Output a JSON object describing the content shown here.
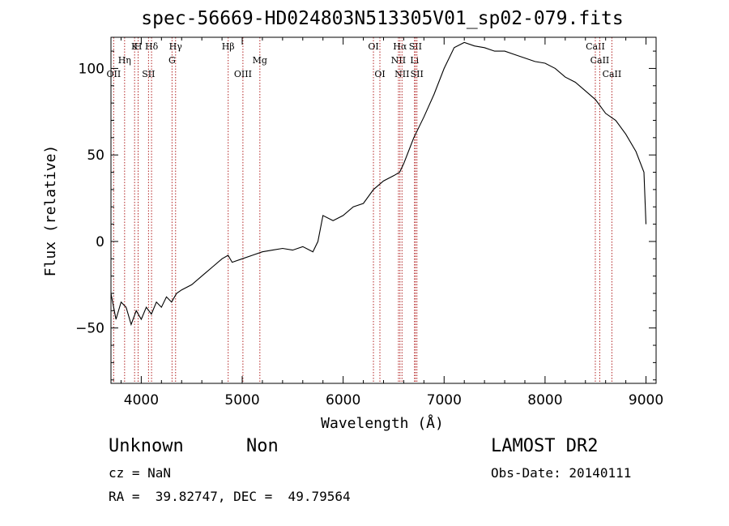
{
  "chart_data": {
    "type": "line",
    "title": "spec-56669-HD024803N513305V01_sp02-079.fits",
    "xlabel": "Wavelength (Å)",
    "ylabel": "Flux (relative)",
    "xlim": [
      3700,
      9100
    ],
    "ylim": [
      -82,
      118
    ],
    "xticks": [
      4000,
      5000,
      6000,
      7000,
      8000,
      9000
    ],
    "yticks": [
      -50,
      0,
      50,
      100
    ],
    "grid": false,
    "line_color": "#000000",
    "marker_color": "#b22222",
    "series": [
      {
        "x": [
          3700,
          3750,
          3800,
          3850,
          3900,
          3950,
          4000,
          4050,
          4100,
          4150,
          4200,
          4250,
          4300,
          4350,
          4400,
          4500,
          4600,
          4700,
          4800,
          4860,
          4900,
          5000,
          5100,
          5200,
          5300,
          5400,
          5500,
          5600,
          5700,
          5750,
          5800,
          5900,
          6000,
          6100,
          6200,
          6300,
          6400,
          6500,
          6560,
          6600,
          6700,
          6800,
          6900,
          7000,
          7100,
          7200,
          7300,
          7400,
          7500,
          7600,
          7700,
          7800,
          7900,
          8000,
          8100,
          8200,
          8300,
          8400,
          8500,
          8600,
          8700,
          8800,
          8900,
          8980,
          9000
        ],
        "y": [
          -30,
          -45,
          -35,
          -38,
          -48,
          -40,
          -45,
          -38,
          -42,
          -35,
          -38,
          -32,
          -35,
          -30,
          -28,
          -25,
          -20,
          -15,
          -10,
          -8,
          -12,
          -10,
          -8,
          -6,
          -5,
          -4,
          -5,
          -3,
          -6,
          0,
          15,
          12,
          15,
          20,
          22,
          30,
          35,
          38,
          40,
          45,
          60,
          72,
          85,
          100,
          112,
          115,
          113,
          112,
          110,
          110,
          108,
          106,
          104,
          103,
          100,
          95,
          92,
          87,
          82,
          74,
          70,
          62,
          52,
          40,
          10
        ]
      }
    ],
    "line_markers": [
      {
        "wl": 3727,
        "label": "OII",
        "row": 3
      },
      {
        "wl": 3835,
        "label": "Hη",
        "row": 2
      },
      {
        "wl": 3934,
        "label": "K",
        "row": 1
      },
      {
        "wl": 3969,
        "label": "H",
        "row": 1
      },
      {
        "wl": 4072,
        "label": "SII",
        "row": 3
      },
      {
        "wl": 4102,
        "label": "Hδ",
        "row": 1
      },
      {
        "wl": 4305,
        "label": "G",
        "row": 2
      },
      {
        "wl": 4340,
        "label": "Hγ",
        "row": 1
      },
      {
        "wl": 4861,
        "label": "Hβ",
        "row": 1
      },
      {
        "wl": 5007,
        "label": "OIII",
        "row": 3
      },
      {
        "wl": 5175,
        "label": "Mg",
        "row": 2
      },
      {
        "wl": 6300,
        "label": "OI",
        "row": 1
      },
      {
        "wl": 6364,
        "label": "OI",
        "row": 3
      },
      {
        "wl": 6548,
        "label": "NII",
        "row": 2
      },
      {
        "wl": 6563,
        "label": "Hα",
        "row": 1
      },
      {
        "wl": 6583,
        "label": "NII",
        "row": 3
      },
      {
        "wl": 6707,
        "label": "Li",
        "row": 2
      },
      {
        "wl": 6716,
        "label": "SII",
        "row": 1
      },
      {
        "wl": 6731,
        "label": "SII",
        "row": 3
      },
      {
        "wl": 8498,
        "label": "CaII",
        "row": 1
      },
      {
        "wl": 8542,
        "label": "CaII",
        "row": 2
      },
      {
        "wl": 8662,
        "label": "CaII",
        "row": 3
      }
    ]
  },
  "info": {
    "class": "Unknown",
    "subclass": "Non",
    "survey": "LAMOST DR2",
    "cz": "cz = NaN",
    "obs_date": "Obs-Date: 20140111",
    "coords": "RA =  39.82747, DEC =  49.79564"
  }
}
